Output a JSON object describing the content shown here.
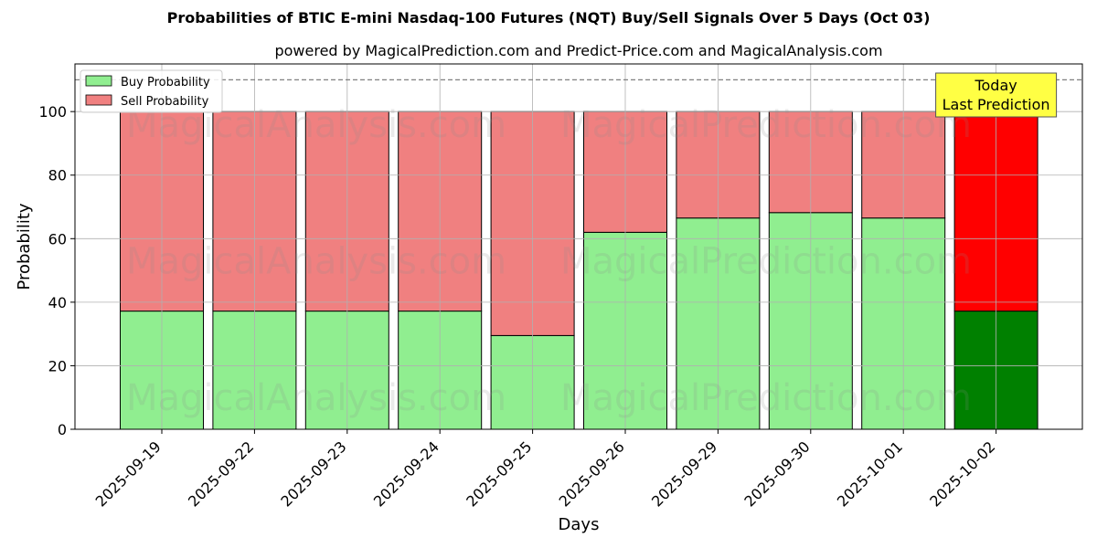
{
  "chart_data": {
    "type": "bar",
    "stacked": true,
    "title": "Probabilities of BTIC E-mini Nasdaq-100 Futures (NQT) Buy/Sell Signals Over 5 Days (Oct 03)",
    "subtitle": "powered by MagicalPrediction.com and Predict-Price.com and MagicalAnalysis.com",
    "xlabel": "Days",
    "ylabel": "Probability",
    "ylim": [
      0,
      115
    ],
    "yticks": [
      0,
      20,
      40,
      60,
      80,
      100
    ],
    "reference_line": 110,
    "grid": true,
    "legend_position": "top-left",
    "categories": [
      "2025-09-19",
      "2025-09-22",
      "2025-09-23",
      "2025-09-24",
      "2025-09-25",
      "2025-09-26",
      "2025-09-29",
      "2025-09-30",
      "2025-10-01",
      "2025-10-02"
    ],
    "series": [
      {
        "name": "Buy Probability",
        "color": "#90ee90",
        "highlight_color": "#008000",
        "values": [
          37.2,
          37.2,
          37.2,
          37.2,
          29.5,
          62.0,
          66.5,
          68.2,
          66.5,
          37.2
        ]
      },
      {
        "name": "Sell Probability",
        "color": "#f08080",
        "highlight_color": "#ff0000",
        "values": [
          62.8,
          62.8,
          62.8,
          62.8,
          70.5,
          38.0,
          33.5,
          31.8,
          33.5,
          62.8
        ]
      }
    ],
    "highlight_index": 9,
    "annotation": {
      "lines": [
        "Today",
        "Last Prediction"
      ],
      "color": "#ffff44"
    },
    "watermarks": [
      "MagicalAnalysis.com",
      "MagicalPrediction.com"
    ]
  }
}
